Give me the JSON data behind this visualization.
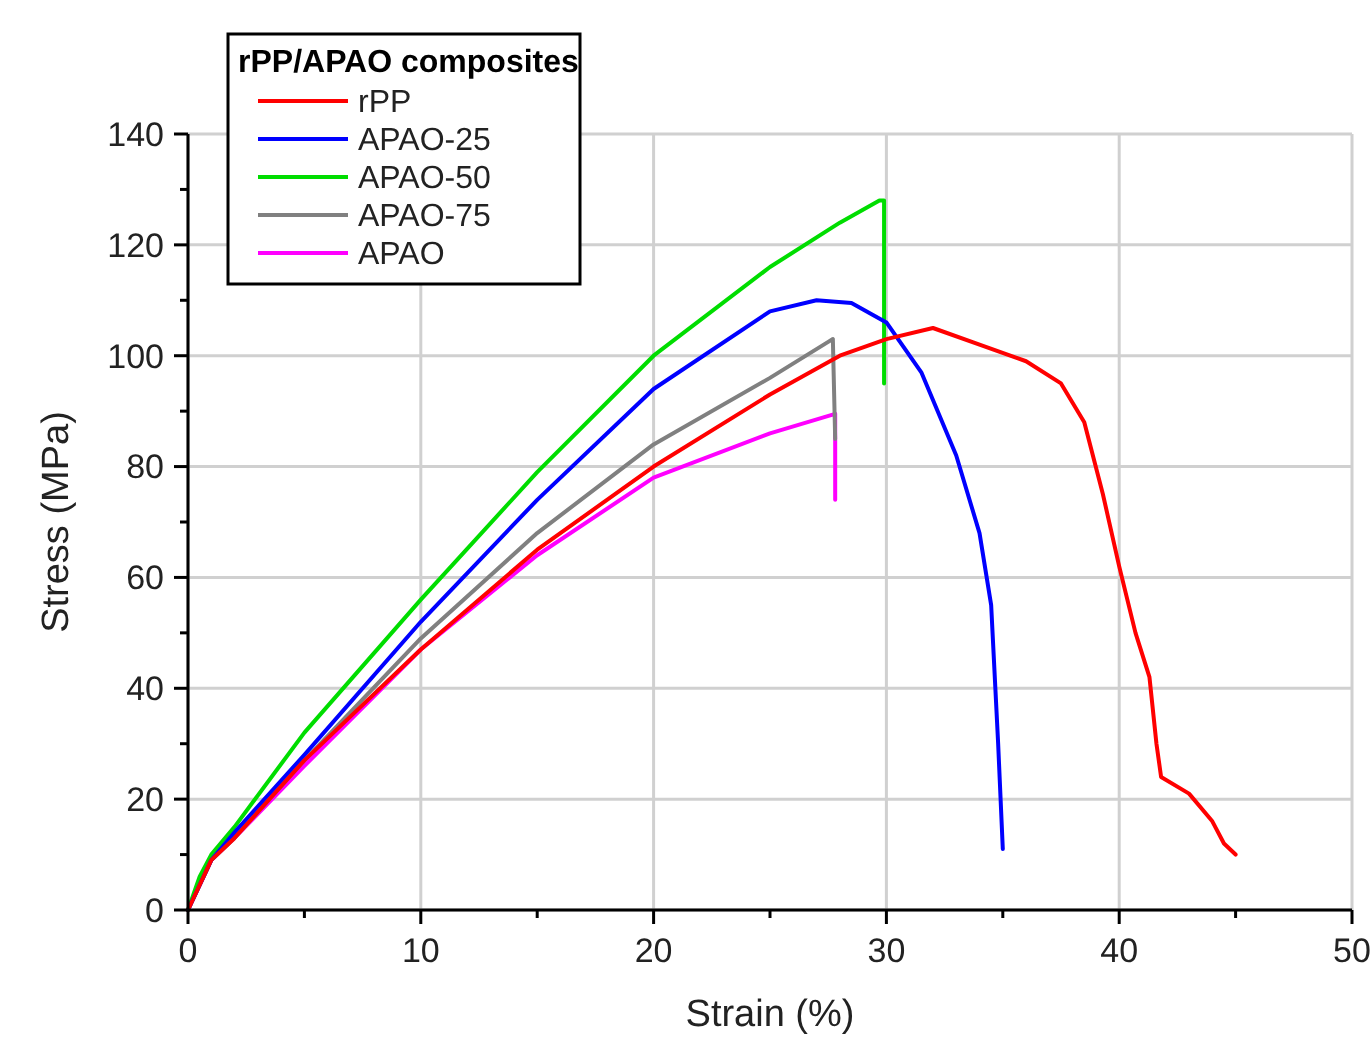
{
  "chart_data": {
    "type": "line",
    "xlabel": "Strain (%)",
    "ylabel": "Stress (MPa)",
    "legend_title": "rPP/APAO composites",
    "legend": "top left",
    "grid": true,
    "marker": "none",
    "line_style": "solid",
    "xlim": [
      0,
      50
    ],
    "xticks": [
      0,
      10,
      20,
      30,
      40,
      50
    ],
    "ylim": [
      0,
      140
    ],
    "yticks": [
      0,
      20,
      40,
      60,
      80,
      100,
      120,
      140
    ],
    "series": [
      {
        "name": "rPP",
        "color": "#ff0000",
        "x": [
          0,
          1,
          2,
          5,
          10,
          15,
          20,
          25,
          28,
          30,
          32,
          34,
          36,
          37.5,
          38.5,
          39.3,
          40,
          40.7,
          41.3,
          41.6,
          41.8,
          43,
          44,
          44.5,
          45
        ],
        "values": [
          0,
          9,
          13,
          27,
          47,
          65,
          80,
          93,
          100,
          103,
          105,
          102,
          99,
          95,
          88,
          75,
          62,
          50,
          42,
          30,
          24,
          21,
          16,
          12,
          10
        ]
      },
      {
        "name": "APAO-25",
        "color": "#0000ff",
        "x": [
          0,
          1,
          2,
          5,
          10,
          15,
          20,
          25,
          27,
          28.5,
          30,
          31.5,
          33,
          34,
          34.5,
          34.8,
          35
        ],
        "values": [
          0,
          9,
          14,
          28,
          52,
          74,
          94,
          108,
          110,
          109.5,
          106,
          97,
          82,
          68,
          55,
          30,
          11
        ]
      },
      {
        "name": "APAO-50",
        "color": "#00dd00",
        "x": [
          0,
          0.5,
          1,
          2,
          5,
          10,
          15,
          20,
          25,
          28,
          29.7,
          29.9,
          29.9
        ],
        "values": [
          0,
          6,
          10,
          15,
          32,
          56,
          79,
          100,
          116,
          124,
          128,
          128,
          95
        ]
      },
      {
        "name": "APAO-75",
        "color": "#808080",
        "x": [
          0,
          1,
          2,
          5,
          10,
          15,
          20,
          25,
          27.5,
          27.7,
          27.8
        ],
        "values": [
          0,
          9,
          13,
          27,
          49,
          68,
          84,
          96,
          102.5,
          103,
          85
        ]
      },
      {
        "name": "APAO",
        "color": "#ff00ff",
        "x": [
          0,
          1,
          2,
          5,
          10,
          15,
          20,
          25,
          27.8,
          27.8
        ],
        "values": [
          0,
          9,
          13,
          26,
          47,
          64,
          78,
          86,
          89.5,
          74
        ]
      }
    ]
  }
}
